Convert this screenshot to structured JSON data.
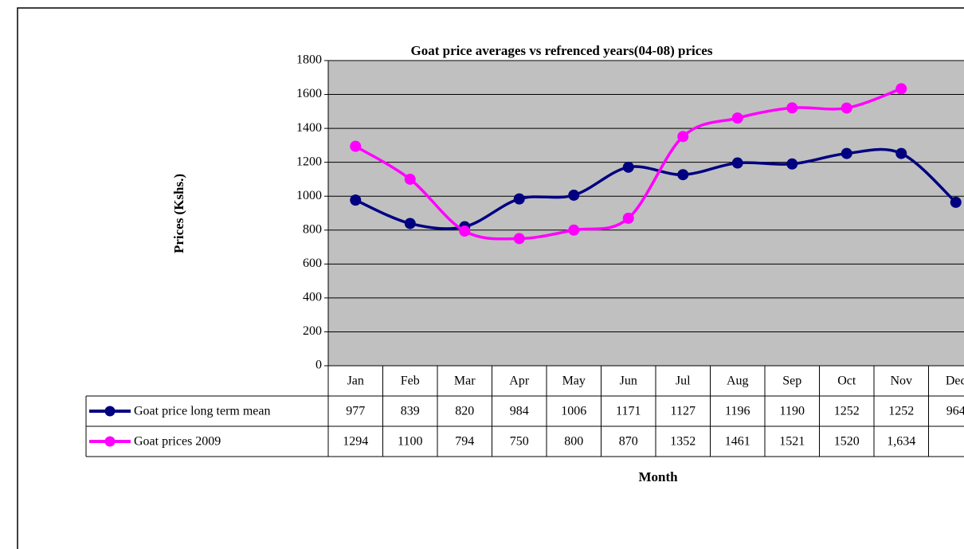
{
  "chart_data": {
    "type": "line",
    "title": "Goat price averages vs refrenced years(04-08)  prices",
    "y_label": "Prices (Kshs.)",
    "x_label": "Month",
    "categories": [
      "Jan",
      "Feb",
      "Mar",
      "Apr",
      "May",
      "Jun",
      "Jul",
      "Aug",
      "Sep",
      "Oct",
      "Nov",
      "Dec"
    ],
    "series": [
      {
        "name": "Goat price long term mean",
        "color": "#000080",
        "values": [
          977,
          839,
          820,
          984,
          1006,
          1171,
          1127,
          1196,
          1190,
          1252,
          1252,
          964
        ]
      },
      {
        "name": "Goat prices 2009",
        "color": "#ff00ff",
        "values": [
          1294,
          1100,
          794,
          750,
          800,
          870,
          1352,
          1461,
          1521,
          1520,
          1634,
          null
        ],
        "value_labels": [
          "1294",
          "1100",
          "794",
          "750",
          "800",
          "870",
          "1352",
          "1461",
          "1521",
          "1520",
          "1,634",
          null
        ]
      }
    ],
    "ylim": [
      0,
      1800
    ],
    "yticks": [
      0,
      200,
      400,
      600,
      800,
      1000,
      1200,
      1400,
      1600,
      1800
    ],
    "grid": true,
    "plot_background": "#c0c0c0",
    "data_table": true
  }
}
